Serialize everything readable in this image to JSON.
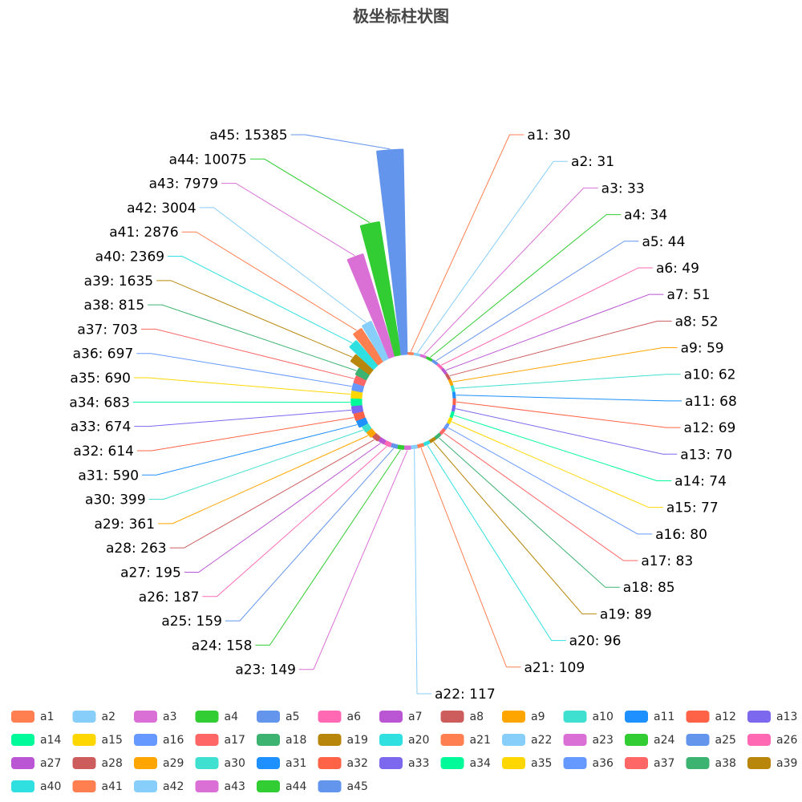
{
  "chart_data": {
    "type": "bar",
    "subtype": "polar-radial-bar",
    "title": "极坐标柱状图",
    "legend_position": "bottom",
    "categories": [
      "a1",
      "a2",
      "a3",
      "a4",
      "a5",
      "a6",
      "a7",
      "a8",
      "a9",
      "a10",
      "a11",
      "a12",
      "a13",
      "a14",
      "a15",
      "a16",
      "a17",
      "a18",
      "a19",
      "a20",
      "a21",
      "a22",
      "a23",
      "a24",
      "a25",
      "a26",
      "a27",
      "a28",
      "a29",
      "a30",
      "a31",
      "a32",
      "a33",
      "a34",
      "a35",
      "a36",
      "a37",
      "a38",
      "a39",
      "a40",
      "a41",
      "a42",
      "a43",
      "a44",
      "a45"
    ],
    "values": [
      30,
      31,
      33,
      34,
      44,
      49,
      51,
      52,
      59,
      62,
      68,
      69,
      70,
      74,
      77,
      80,
      83,
      85,
      89,
      96,
      109,
      117,
      149,
      158,
      159,
      187,
      195,
      263,
      361,
      399,
      590,
      614,
      674,
      683,
      690,
      697,
      703,
      815,
      1635,
      2369,
      2876,
      3004,
      7979,
      10075,
      15385
    ],
    "colors": [
      "#ff7f50",
      "#87cefa",
      "#da70d6",
      "#32cd32",
      "#6495ed",
      "#ff69b4",
      "#ba55d3",
      "#cd5c5c",
      "#ffa500",
      "#40e0d0",
      "#1e90ff",
      "#ff6347",
      "#7b68ee",
      "#00fa9a",
      "#ffd700",
      "#6699ff",
      "#ff6666",
      "#3cb371",
      "#b8860b",
      "#30e0e0"
    ]
  }
}
